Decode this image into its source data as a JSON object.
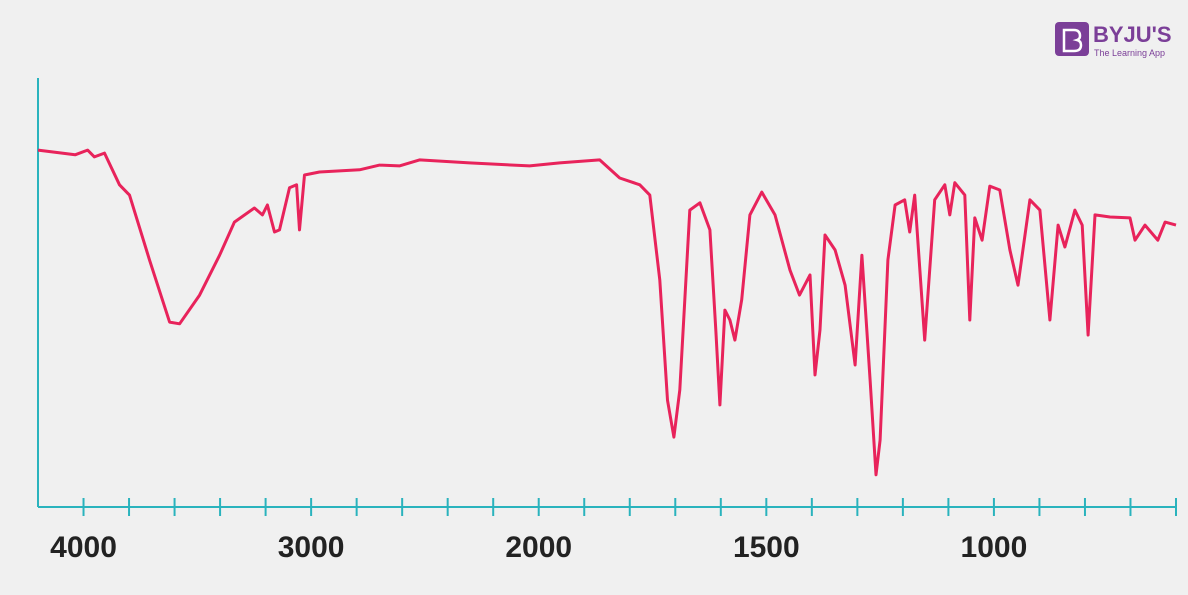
{
  "chart_data": {
    "type": "line",
    "logo": {
      "brand": "BYJU'S",
      "tagline": "The Learning App"
    },
    "xlim": [
      4200,
      600
    ],
    "ylim": [
      0,
      100
    ],
    "xticks": [
      4000,
      3000,
      2000,
      1500,
      1000
    ],
    "xminorticks": [
      3800,
      3600,
      3400,
      3200,
      2800,
      2600,
      2400,
      2200,
      1900,
      1800,
      1700,
      1600,
      1400,
      1300,
      1200,
      1100,
      900,
      800,
      700,
      600
    ],
    "axis_color": "#2ab3bd",
    "series": [
      {
        "color": "#e8235b",
        "x": [
          4200,
          4037,
          3982,
          3952,
          3908,
          3842,
          3798,
          3710,
          3622,
          3578,
          3490,
          3402,
          3337,
          3249,
          3214,
          3192,
          3161,
          3139,
          3095,
          3064,
          3051,
          3029,
          2963,
          2787,
          2699,
          2612,
          2524,
          2304,
          2040,
          1954,
          1866,
          1822,
          1778,
          1756,
          1734,
          1717,
          1703,
          1690,
          1668,
          1646,
          1624,
          1611,
          1602,
          1591,
          1580,
          1569,
          1554,
          1536,
          1510,
          1481,
          1448,
          1427,
          1404,
          1393,
          1382,
          1371,
          1349,
          1327,
          1305,
          1290,
          1272,
          1259,
          1250,
          1233,
          1217,
          1196,
          1185,
          1174,
          1152,
          1130,
          1108,
          1097,
          1086,
          1064,
          1053,
          1042,
          1026,
          1009,
          987,
          965,
          947,
          921,
          899,
          877,
          859,
          844,
          822,
          806,
          793,
          778,
          745,
          701,
          690,
          668,
          640,
          624,
          600
        ],
        "values": [
          83.2,
          82.1,
          83.2,
          81.6,
          82.5,
          75.1,
          72.7,
          57.6,
          43.1,
          42.7,
          49.4,
          58.7,
          66.4,
          69.7,
          68.1,
          70.4,
          64.1,
          64.6,
          74.4,
          75.1,
          64.6,
          77.4,
          78.1,
          78.6,
          79.7,
          79.5,
          80.9,
          80.2,
          79.5,
          80.2,
          80.9,
          76.7,
          75.1,
          72.7,
          52.9,
          24.9,
          16.3,
          27.3,
          69.2,
          70.9,
          64.6,
          41.3,
          23.8,
          45.9,
          43.6,
          38.9,
          48.3,
          68.1,
          73.4,
          68.1,
          55.2,
          49.4,
          54.1,
          30.8,
          41.3,
          63.4,
          59.9,
          51.7,
          33.1,
          58.7,
          29.6,
          7.5,
          15.6,
          57.6,
          70.4,
          71.6,
          64.1,
          72.7,
          38.9,
          71.6,
          75.1,
          68.1,
          75.6,
          72.7,
          43.6,
          67.4,
          62.2,
          74.8,
          73.9,
          59.9,
          51.7,
          71.6,
          69.2,
          43.6,
          65.7,
          60.6,
          69.2,
          65.7,
          40.1,
          68.1,
          67.6,
          67.4,
          62.2,
          65.7,
          62.2,
          66.4,
          65.7
        ]
      }
    ]
  }
}
